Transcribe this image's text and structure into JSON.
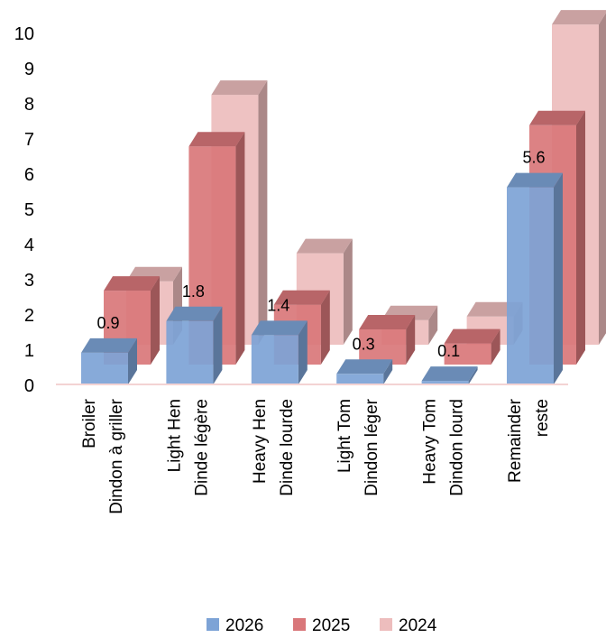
{
  "chart_data": {
    "type": "bar",
    "categories": [
      [
        "Broiler",
        "Dindon à griller"
      ],
      [
        "Light Hen",
        "Dinde légère"
      ],
      [
        "Heavy Hen",
        "Dinde lourde"
      ],
      [
        "Light Tom",
        "Dindon léger"
      ],
      [
        "Heavy Tom",
        "Dindon lourd"
      ],
      [
        "Remainder",
        "reste"
      ]
    ],
    "series": [
      {
        "name": "2026",
        "values": [
          0.9,
          1.8,
          1.4,
          0.3,
          0.1,
          5.6
        ],
        "color": "#7da3d6"
      },
      {
        "name": "2025",
        "values": [
          2.1,
          6.2,
          1.7,
          1.0,
          0.6,
          6.8
        ],
        "color": "#d9777a"
      },
      {
        "name": "2024",
        "values": [
          1.8,
          7.1,
          2.6,
          0.7,
          0.8,
          9.1
        ],
        "color": "#edbdbd"
      }
    ],
    "data_labels_series": "2026",
    "y_ticks": [
      "0",
      "1",
      "2",
      "3",
      "4",
      "5",
      "6",
      "7",
      "8",
      "9",
      "10"
    ],
    "ylim": [
      0,
      10
    ],
    "grid": false,
    "legend_position": "bottom",
    "style": "3d-clustered-depth"
  }
}
